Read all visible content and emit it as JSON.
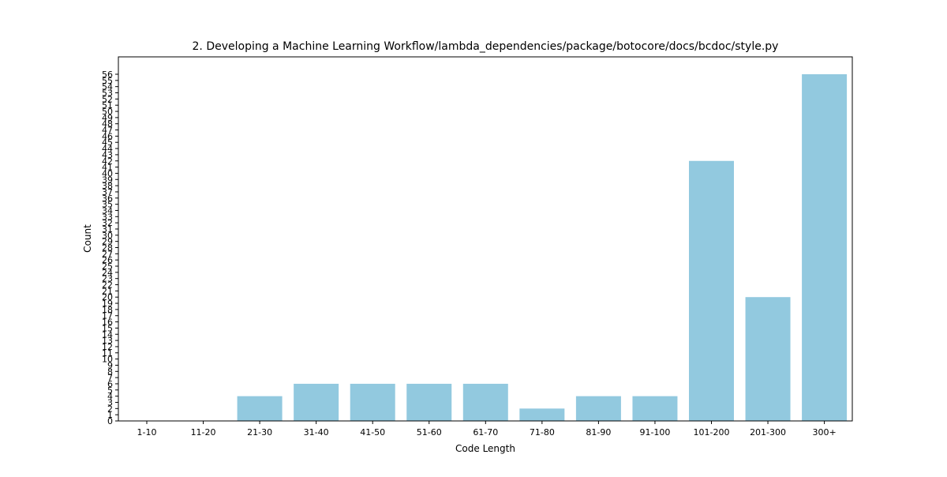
{
  "chart_data": {
    "type": "bar",
    "title": "2. Developing a Machine Learning Workflow/lambda_dependencies/package/botocore/docs/bcdoc/style.py",
    "xlabel": "Code Length",
    "ylabel": "Count",
    "categories": [
      "1-10",
      "11-20",
      "21-30",
      "31-40",
      "41-50",
      "51-60",
      "61-70",
      "71-80",
      "81-90",
      "91-100",
      "101-200",
      "201-300",
      "300+"
    ],
    "values": [
      0,
      0,
      4,
      6,
      6,
      6,
      6,
      2,
      4,
      4,
      42,
      20,
      56
    ],
    "ylim": [
      0,
      56
    ],
    "y_tick_step": 1,
    "bar_color": "#92c9df",
    "grid": false,
    "legend": "none"
  }
}
